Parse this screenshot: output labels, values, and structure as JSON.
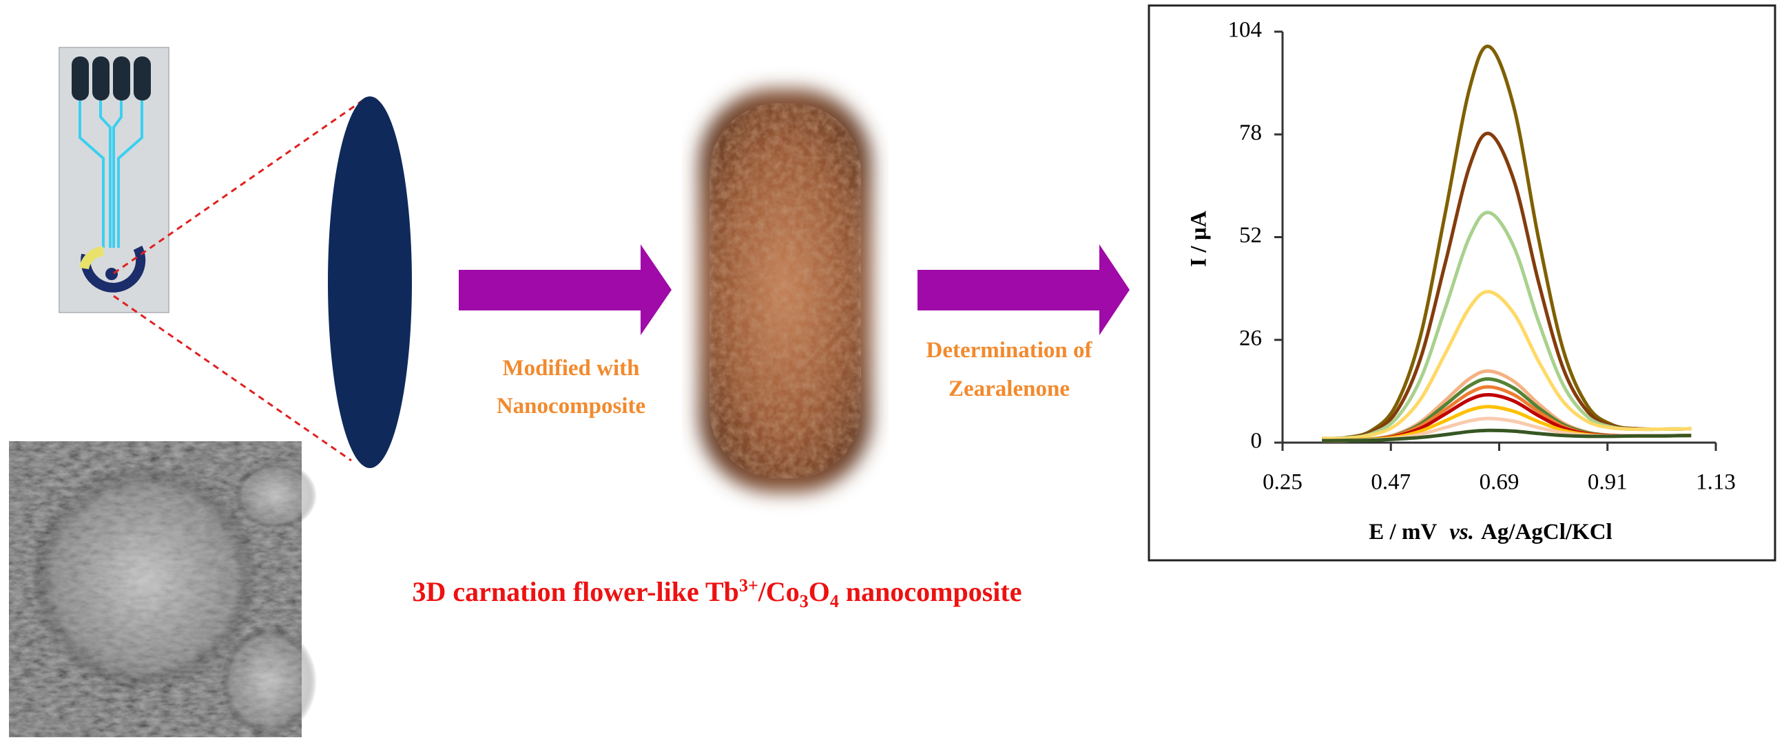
{
  "labels": {
    "step1": [
      "Modified with",
      "Nanocomposite"
    ],
    "step2": [
      "Determination of",
      "Zearalenone"
    ],
    "caption": {
      "prefix": "3D carnation flower-like Tb",
      "sup": "3+",
      "mid": "/Co",
      "sub1": "3",
      "o": "O",
      "sub2": "4",
      "suffix": " nanocomposite"
    }
  },
  "chart_data": {
    "type": "line",
    "ylabel": "I / µA",
    "xlabel": [
      "E / mV",
      "vs.",
      "Ag/AgCl/KCl"
    ],
    "xlim": [
      0.25,
      1.13
    ],
    "xticks": [
      0.25,
      0.47,
      0.69,
      0.91,
      1.13
    ],
    "ylim": [
      0,
      104
    ],
    "yticks": [
      0,
      26,
      52,
      78,
      104
    ],
    "x": [
      0.33,
      0.38,
      0.43,
      0.48,
      0.53,
      0.58,
      0.63,
      0.67,
      0.72,
      0.77,
      0.82,
      0.87,
      0.92,
      0.97,
      1.02,
      1.08
    ],
    "series": [
      {
        "color": "#7f6000",
        "values": [
          1,
          1.3,
          3,
          9.4,
          26.9,
          57.8,
          89.7,
          100.2,
          84.8,
          51.6,
          23.5,
          9.2,
          4.5,
          3.5,
          3.4,
          3.5
        ]
      },
      {
        "color": "#843c0c",
        "values": [
          1,
          1.2,
          2.6,
          7.6,
          21.2,
          45.2,
          70,
          78.2,
          66.3,
          40.6,
          18.8,
          7.8,
          4.2,
          3.5,
          3.4,
          3.5
        ]
      },
      {
        "color": "#a9d18e",
        "values": [
          1,
          1.2,
          2.2,
          6,
          16,
          33.8,
          52.1,
          58.2,
          49.5,
          30.6,
          14.6,
          6.5,
          3.9,
          3.4,
          3.4,
          3.5
        ]
      },
      {
        "color": "#ffd966",
        "values": [
          1,
          1.1,
          1.9,
          4.4,
          10.9,
          22.4,
          34.2,
          38.2,
          32.7,
          20.6,
          10.4,
          5.3,
          3.7,
          3.4,
          3.4,
          3.5
        ]
      },
      {
        "color": "#f4b183",
        "values": [
          0.5,
          0.6,
          0.9,
          2.1,
          5.2,
          10.6,
          16.2,
          18.1,
          15.5,
          9.8,
          5,
          2.6,
          1.8,
          1.7,
          1.7,
          1.8
        ]
      },
      {
        "color": "#548235",
        "values": [
          0.5,
          0.6,
          0.9,
          1.9,
          4.7,
          9.5,
          14.4,
          16.1,
          13.8,
          8.8,
          4.6,
          2.5,
          1.8,
          1.7,
          1.7,
          1.8
        ]
      },
      {
        "color": "#ed7d31",
        "values": [
          0.5,
          0.5,
          0.8,
          1.8,
          4.2,
          8.3,
          12.6,
          14.1,
          12.1,
          7.8,
          4.1,
          2.3,
          1.8,
          1.7,
          1.7,
          1.8
        ]
      },
      {
        "color": "#c00000",
        "values": [
          0.5,
          0.5,
          0.8,
          1.6,
          3.6,
          7.2,
          10.9,
          12.1,
          10.5,
          6.8,
          3.7,
          2.2,
          1.8,
          1.7,
          1.7,
          1.8
        ]
      },
      {
        "color": "#ffc000",
        "values": [
          0.5,
          0.5,
          0.8,
          1.4,
          2.9,
          5.5,
          8.2,
          9.1,
          7.9,
          5.3,
          3.1,
          2,
          1.7,
          1.7,
          1.7,
          1.8
        ]
      },
      {
        "color": "#f8cbad",
        "values": [
          0.5,
          0.5,
          0.7,
          1.1,
          2.1,
          3.8,
          5.5,
          6.1,
          5.4,
          3.8,
          2.5,
          1.8,
          1.7,
          1.7,
          1.7,
          1.8
        ]
      },
      {
        "color": "#375623",
        "values": [
          0.5,
          0.5,
          0.6,
          0.9,
          1.3,
          2,
          2.8,
          3.1,
          2.9,
          2.3,
          1.8,
          1.6,
          1.6,
          1.7,
          1.7,
          1.8
        ]
      }
    ]
  }
}
